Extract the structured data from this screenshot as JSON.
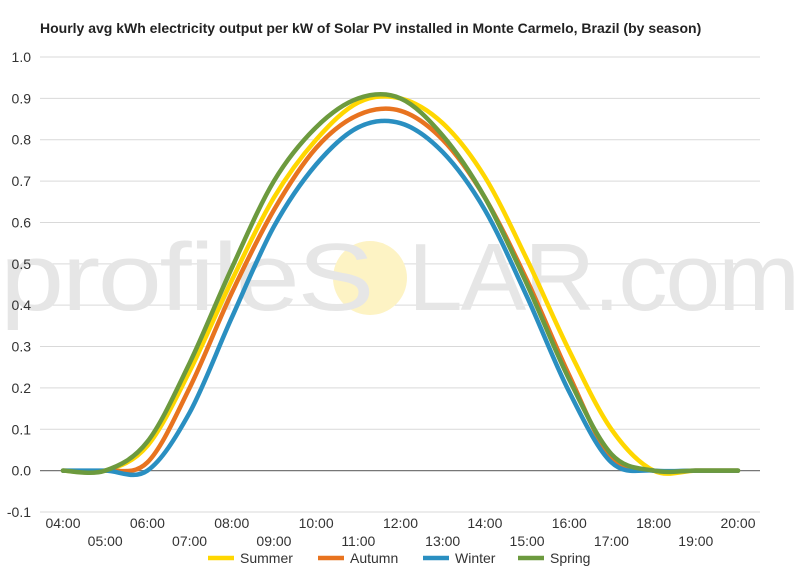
{
  "watermark": {
    "part1": "profileS",
    "part2": "LAR.com",
    "sun_color": "#fdf3c4"
  },
  "chart_data": {
    "type": "line",
    "title": "Hourly avg kWh electricity output per kW of Solar PV installed in Monte Carmelo, Brazil (by season)",
    "xlabel": "",
    "ylabel": "",
    "xlim": [
      4,
      20
    ],
    "ylim": [
      -0.1,
      1.0
    ],
    "y_ticks": [
      "1.0",
      "0.9",
      "0.8",
      "0.7",
      "0.6",
      "0.5",
      "0.4",
      "0.3",
      "0.2",
      "0.1",
      "0.0",
      "-0.1"
    ],
    "y_tick_values": [
      1.0,
      0.9,
      0.8,
      0.7,
      0.6,
      0.5,
      0.4,
      0.3,
      0.2,
      0.1,
      0.0,
      -0.1
    ],
    "x_ticks_even": [
      "04:00",
      "06:00",
      "08:00",
      "10:00",
      "12:00",
      "14:00",
      "16:00",
      "18:00",
      "20:00"
    ],
    "x_ticks_even_values": [
      4,
      6,
      8,
      10,
      12,
      14,
      16,
      18,
      20
    ],
    "x_ticks_odd": [
      "05:00",
      "07:00",
      "09:00",
      "11:00",
      "13:00",
      "15:00",
      "17:00",
      "19:00"
    ],
    "x_ticks_odd_values": [
      5,
      7,
      9,
      11,
      13,
      15,
      17,
      19
    ],
    "grid": true,
    "legend_position": "bottom",
    "x": [
      4,
      5,
      6,
      7,
      8,
      9,
      10,
      11,
      12,
      13,
      14,
      15,
      16,
      17,
      18,
      19,
      20
    ],
    "series": [
      {
        "name": "Summer",
        "color": "#ffd700",
        "values": [
          0.0,
          0.0,
          0.06,
          0.24,
          0.46,
          0.66,
          0.8,
          0.89,
          0.9,
          0.84,
          0.71,
          0.51,
          0.29,
          0.1,
          0.0,
          0.0,
          0.0
        ]
      },
      {
        "name": "Autumn",
        "color": "#e8731f",
        "values": [
          0.0,
          0.0,
          0.02,
          0.2,
          0.43,
          0.63,
          0.78,
          0.86,
          0.87,
          0.8,
          0.66,
          0.46,
          0.23,
          0.03,
          0.0,
          0.0,
          0.0
        ]
      },
      {
        "name": "Winter",
        "color": "#2a8fc1",
        "values": [
          0.0,
          0.0,
          0.0,
          0.14,
          0.37,
          0.59,
          0.74,
          0.83,
          0.84,
          0.77,
          0.63,
          0.42,
          0.19,
          0.02,
          0.0,
          0.0,
          0.0
        ]
      },
      {
        "name": "Spring",
        "color": "#6c9a3e",
        "values": [
          0.0,
          0.0,
          0.07,
          0.26,
          0.49,
          0.7,
          0.83,
          0.9,
          0.9,
          0.81,
          0.66,
          0.45,
          0.22,
          0.04,
          0.0,
          0.0,
          0.0
        ]
      }
    ]
  }
}
